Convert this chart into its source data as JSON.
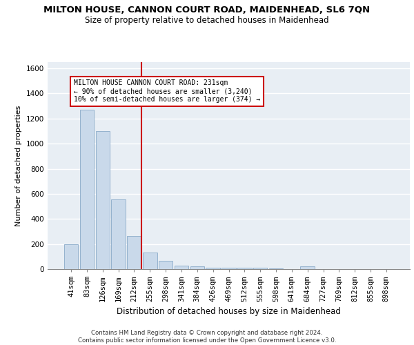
{
  "title": "MILTON HOUSE, CANNON COURT ROAD, MAIDENHEAD, SL6 7QN",
  "subtitle": "Size of property relative to detached houses in Maidenhead",
  "xlabel": "Distribution of detached houses by size in Maidenhead",
  "ylabel": "Number of detached properties",
  "categories": [
    "41sqm",
    "83sqm",
    "126sqm",
    "169sqm",
    "212sqm",
    "255sqm",
    "298sqm",
    "341sqm",
    "384sqm",
    "426sqm",
    "469sqm",
    "512sqm",
    "555sqm",
    "598sqm",
    "641sqm",
    "684sqm",
    "727sqm",
    "769sqm",
    "812sqm",
    "855sqm",
    "898sqm"
  ],
  "values": [
    200,
    1270,
    1100,
    555,
    265,
    130,
    65,
    30,
    20,
    12,
    10,
    10,
    10,
    8,
    0,
    20,
    0,
    0,
    0,
    0,
    0
  ],
  "bar_color": "#c9d9ea",
  "bar_edge_color": "#8aaac8",
  "vline_color": "#cc0000",
  "annotation_box_text_line1": "MILTON HOUSE CANNON COURT ROAD: 231sqm",
  "annotation_box_text_line2": "← 90% of detached houses are smaller (3,240)",
  "annotation_box_text_line3": "10% of semi-detached houses are larger (374) →",
  "annotation_box_color": "#cc0000",
  "ylim": [
    0,
    1650
  ],
  "yticks": [
    0,
    200,
    400,
    600,
    800,
    1000,
    1200,
    1400,
    1600
  ],
  "background_color": "#e8eef4",
  "grid_color": "#ffffff",
  "footer_text": "Contains HM Land Registry data © Crown copyright and database right 2024.\nContains public sector information licensed under the Open Government Licence v3.0.",
  "title_fontsize": 9.5,
  "subtitle_fontsize": 8.5,
  "ylabel_fontsize": 8,
  "xlabel_fontsize": 8.5,
  "tick_fontsize": 7.5,
  "footer_fontsize": 6.2
}
